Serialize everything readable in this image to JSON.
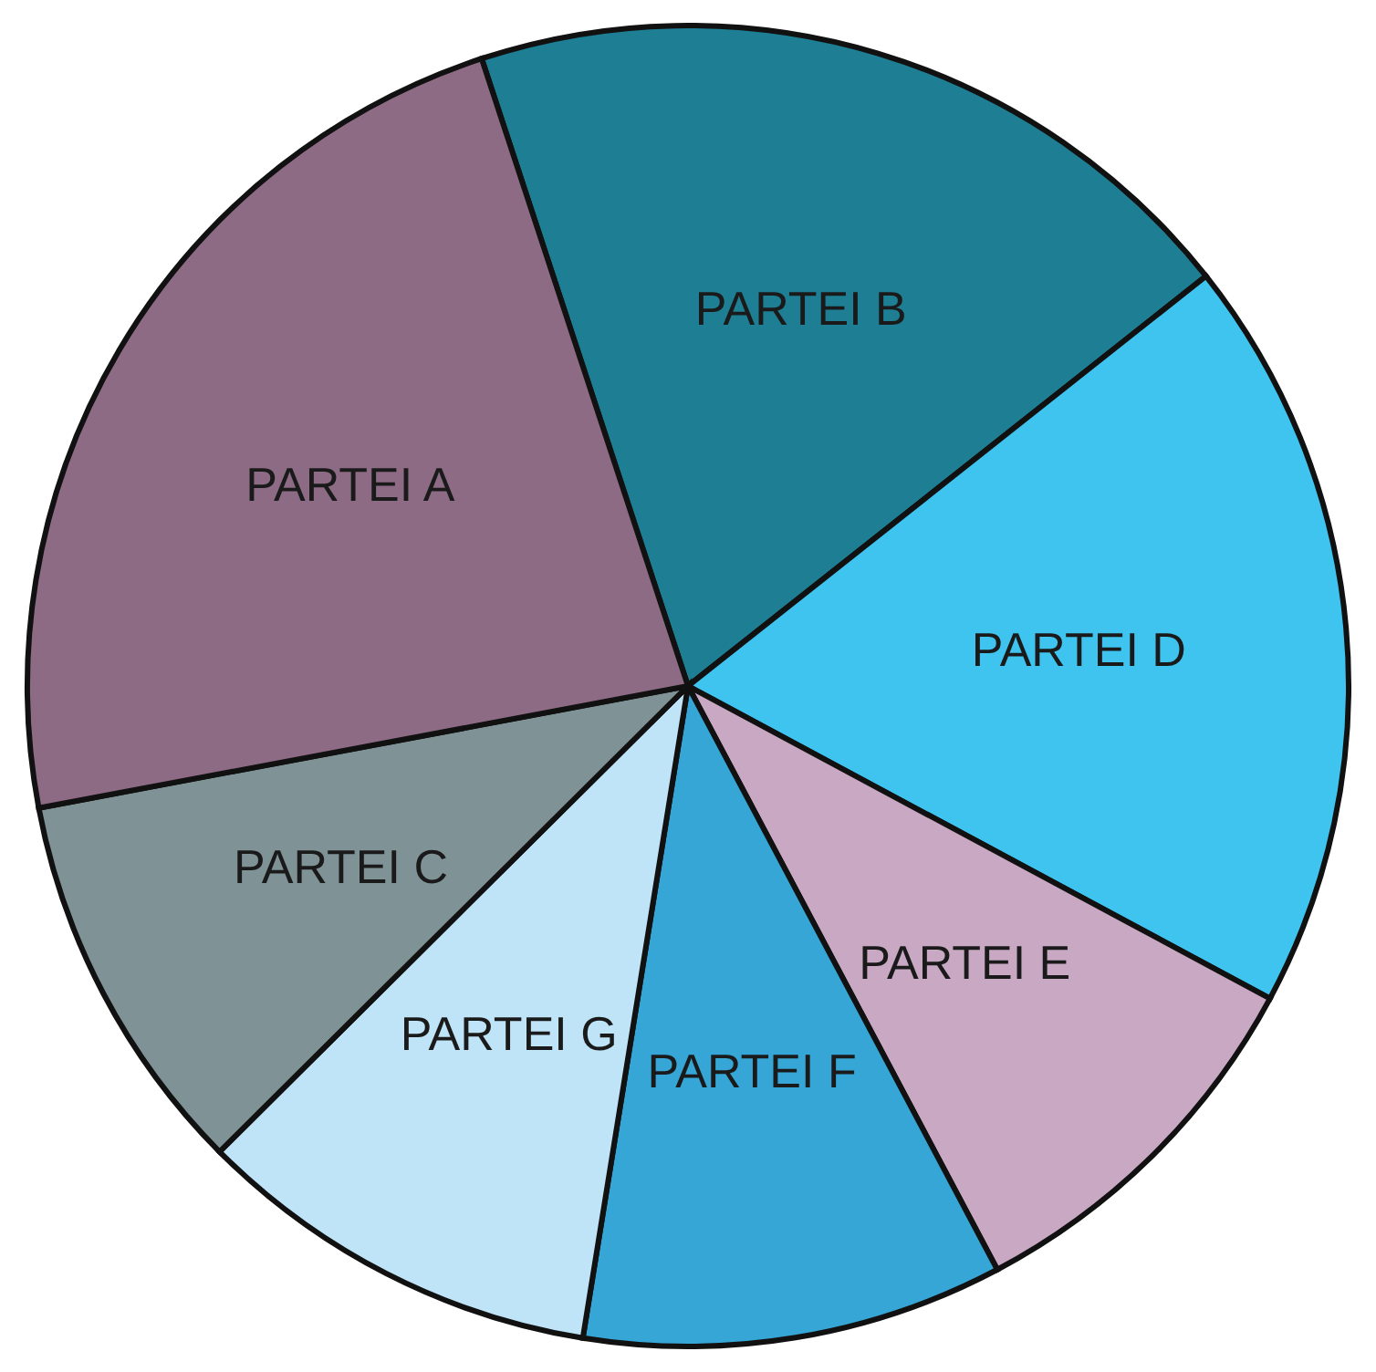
{
  "chart_data": {
    "type": "pie",
    "categories": [
      "PARTEI B",
      "PARTEI D",
      "PARTEI E",
      "PARTEI F",
      "PARTEI G",
      "PARTEI C",
      "PARTEI A"
    ],
    "values": [
      19.4,
      18.5,
      9.4,
      10.3,
      10.0,
      9.5,
      22.9
    ],
    "colors": [
      "#1e7f94",
      "#3ec4ef",
      "#c9a8c4",
      "#36a6d6",
      "#bfe3f7",
      "#7f9396",
      "#8e6b85"
    ]
  }
}
